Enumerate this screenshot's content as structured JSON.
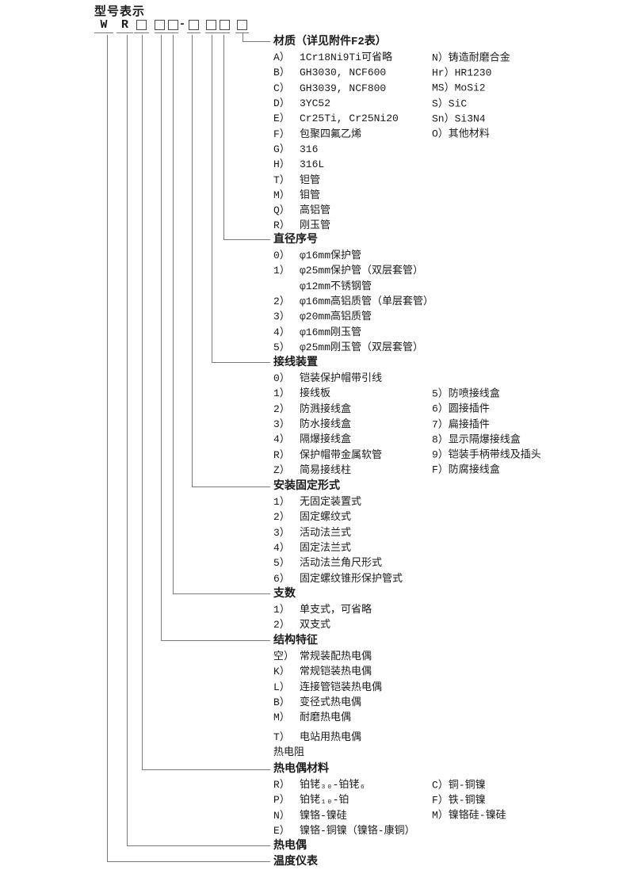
{
  "page_title": "型号表示",
  "code_row": {
    "letter_w": "W",
    "letter_r": "R",
    "hyphen": "-"
  },
  "colors": {
    "background": "#ffffff",
    "text": "#1a1a1a",
    "line": "#7a7a7a"
  },
  "sections": [
    {
      "title": "材质（详见附件F2表）",
      "rows": [
        {
          "c1": {
            "code": "A）",
            "label": "1Cr18Ni9Ti可省略"
          },
          "c2": {
            "code": "N）",
            "label": "铸造耐磨合金"
          }
        },
        {
          "c1": {
            "code": "B）",
            "label": "GH3030, NCF600"
          },
          "c2": {
            "code": "Hr）",
            "label": "HR1230"
          }
        },
        {
          "c1": {
            "code": "C）",
            "label": "GH3039, NCF800"
          },
          "c2": {
            "code": "MS）",
            "label": "MoSi2"
          }
        },
        {
          "c1": {
            "code": "D）",
            "label": "3YC52"
          },
          "c2": {
            "code": "S）",
            "label": "SiC"
          }
        },
        {
          "c1": {
            "code": "E）",
            "label": "Cr25Ti, Cr25Ni20"
          },
          "c2": {
            "code": "Sn）",
            "label": "Si3N4"
          }
        },
        {
          "c1": {
            "code": "F）",
            "label": "包聚四氟乙烯"
          },
          "c2": {
            "code": "O）",
            "label": "其他材料"
          }
        },
        {
          "c1": {
            "code": "G）",
            "label": "316"
          }
        },
        {
          "c1": {
            "code": "H）",
            "label": "316L"
          }
        },
        {
          "c1": {
            "code": "T）",
            "label": "钽管"
          }
        },
        {
          "c1": {
            "code": "M）",
            "label": "钼管"
          }
        },
        {
          "c1": {
            "code": "Q）",
            "label": "高铝管"
          }
        },
        {
          "c1": {
            "code": "R）",
            "label": "刚玉管"
          }
        }
      ]
    },
    {
      "title": "直径序号",
      "rows": [
        {
          "c1": {
            "code": "0）",
            "label": "φ16mm保护管"
          }
        },
        {
          "c1": {
            "code": "1）",
            "label": "φ25mm保护管（双层套管）"
          }
        },
        {
          "c1": {
            "code": "",
            "label": "φ12mm不锈钢管"
          }
        },
        {
          "c1": {
            "code": "2）",
            "label": "φ16mm高铝质管（单层套管）"
          }
        },
        {
          "c1": {
            "code": "3）",
            "label": "φ20mm高铝质管"
          }
        },
        {
          "c1": {
            "code": "4）",
            "label": "φ16mm刚玉管"
          }
        },
        {
          "c1": {
            "code": "5）",
            "label": "φ25mm刚玉管（双层套管）"
          }
        }
      ]
    },
    {
      "title": "接线装置",
      "rows": [
        {
          "c1": {
            "code": "0）",
            "label": "铠装保护帽带引线"
          }
        },
        {
          "c1": {
            "code": "1）",
            "label": "接线板"
          },
          "c2": {
            "code": "5）",
            "label": "防喷接线盒"
          }
        },
        {
          "c1": {
            "code": "2）",
            "label": "防溅接线盒"
          },
          "c2": {
            "code": "6）",
            "label": "圆接插件"
          }
        },
        {
          "c1": {
            "code": "3）",
            "label": "防水接线盒"
          },
          "c2": {
            "code": "7）",
            "label": "扁接插件"
          }
        },
        {
          "c1": {
            "code": "4）",
            "label": "隔爆接线盒"
          },
          "c2": {
            "code": "8）",
            "label": "显示隔爆接线盒"
          }
        },
        {
          "c1": {
            "code": "R）",
            "label": "保护帽带金属软管"
          },
          "c2": {
            "code": "9）",
            "label": "铠装手柄带线及插头"
          }
        },
        {
          "c1": {
            "code": "Z）",
            "label": "简易接线柱"
          },
          "c2": {
            "code": "F）",
            "label": "防腐接线盒"
          }
        }
      ]
    },
    {
      "title": "安装固定形式",
      "rows": [
        {
          "c1": {
            "code": "1）",
            "label": "无固定装置式"
          }
        },
        {
          "c1": {
            "code": "2）",
            "label": "固定螺纹式"
          }
        },
        {
          "c1": {
            "code": "3）",
            "label": "活动法兰式"
          }
        },
        {
          "c1": {
            "code": "4）",
            "label": "固定法兰式"
          }
        },
        {
          "c1": {
            "code": "5）",
            "label": "活动法兰角尺形式"
          }
        },
        {
          "c1": {
            "code": "6）",
            "label": "固定螺纹锥形保护管式"
          }
        }
      ]
    },
    {
      "title": "支数",
      "rows": [
        {
          "c1": {
            "code": "1）",
            "label": "单支式，可省略"
          }
        },
        {
          "c1": {
            "code": "2）",
            "label": "双支式"
          }
        }
      ]
    },
    {
      "title": "结构特征",
      "rows": [
        {
          "c1": {
            "code": "空）",
            "label": "常规装配热电偶"
          }
        },
        {
          "c1": {
            "code": "K）",
            "label": "常规铠装热电偶"
          }
        },
        {
          "c1": {
            "code": "L）",
            "label": "连接管铠装热电偶"
          }
        },
        {
          "c1": {
            "code": "B）",
            "label": "变径式热电偶"
          }
        },
        {
          "c1": {
            "code": "M）",
            "label": "耐磨热电偶"
          }
        },
        {
          "c1": {
            "code": "T）",
            "label": "电站用热电偶"
          },
          "gap_before": true
        },
        {
          "full": "热电阻"
        }
      ]
    },
    {
      "title": "热电偶材料",
      "rows": [
        {
          "c1": {
            "code": "R）",
            "label": "铂铑₃₀-铂铑₆"
          },
          "c2": {
            "code": "C）",
            "label": "铜-铜镍"
          }
        },
        {
          "c1": {
            "code": "P）",
            "label": "铂铑₁₀-铂"
          },
          "c2": {
            "code": "F）",
            "label": "铁-铜镍"
          }
        },
        {
          "c1": {
            "code": "N）",
            "label": "镍铬-镍硅"
          },
          "c2": {
            "code": "M）",
            "label": "镍铬硅-镍硅"
          }
        },
        {
          "c1": {
            "code": "E）",
            "label": "镍铬-铜镍（镍铬-康铜）"
          }
        }
      ]
    },
    {
      "title": "热电偶",
      "rows": []
    },
    {
      "title": "温度仪表",
      "rows": []
    }
  ]
}
